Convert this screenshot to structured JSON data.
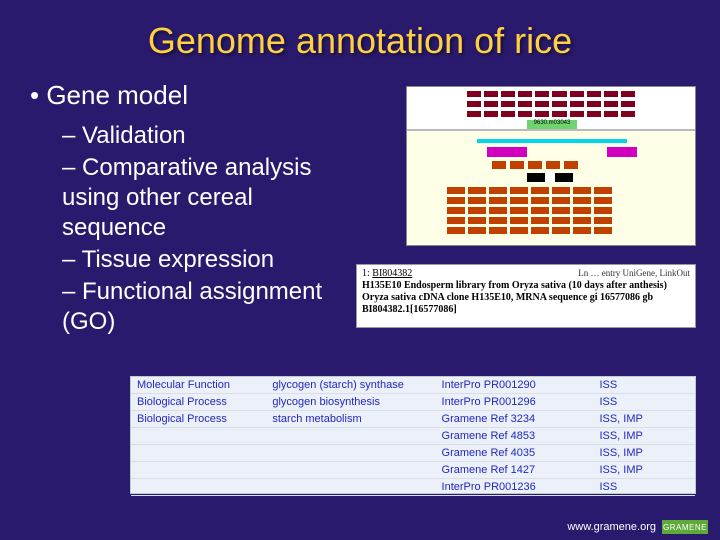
{
  "title": "Genome annotation of rice",
  "main_bullet": "• Gene model",
  "sub_bullets": [
    "– Validation",
    "– Comparative analysis using other cereal sequence",
    "– Tissue expression",
    "– Functional assignment (GO)"
  ],
  "genome_fig": {
    "background": "#ffffe8",
    "green_tag_label": "9630.m03043",
    "feature_colors": {
      "maroon": "#800020",
      "cyan": "#00d7e8",
      "magenta": "#d400c0",
      "orange": "#c04000",
      "black": "#000000"
    }
  },
  "unigene": {
    "index": "1:",
    "id": "BI804382",
    "right_label": "Ln … entry UniGene, LinkOut",
    "line": "H135E10 Endosperm library from Oryza sativa (10 days after anthesis) Oryza sativa cDNA clone H135E10, MRNA sequence gi 16577086 gb BI804382.1[16577086]"
  },
  "go_table": {
    "row_bg": "#ecf0f8",
    "text_color": "#2028c0",
    "rows": [
      {
        "category": "Molecular Function",
        "term": "glycogen (starch) synthase",
        "ref": "InterPro  PR001290",
        "ev": "ISS"
      },
      {
        "category": "Biological Process",
        "term": "glycogen biosynthesis",
        "ref": "InterPro  PR001296",
        "ev": "ISS"
      },
      {
        "category": "Biological Process",
        "term": "starch metabolism",
        "ref": "Gramene  Ref 3234",
        "ev": "ISS, IMP"
      },
      {
        "category": "",
        "term": "",
        "ref": "Gramene  Ref 4853",
        "ev": "ISS, IMP"
      },
      {
        "category": "",
        "term": "",
        "ref": "Gramene  Ref 4035",
        "ev": "ISS, IMP"
      },
      {
        "category": "",
        "term": "",
        "ref": "Gramene  Ref 1427",
        "ev": "ISS, IMP"
      },
      {
        "category": "",
        "term": "",
        "ref": "InterPro  PR001236",
        "ev": "ISS"
      }
    ]
  },
  "footer": {
    "url": "www.gramene.org",
    "logo_text": "GRAMENE"
  }
}
